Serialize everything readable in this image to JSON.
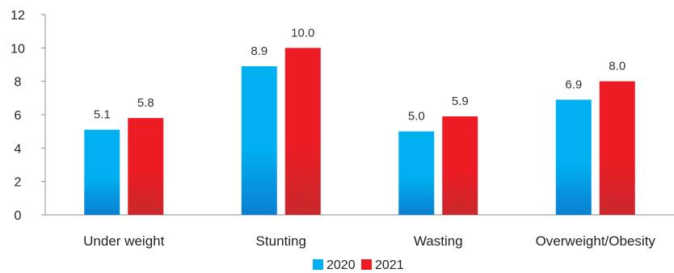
{
  "chart_data": {
    "type": "bar",
    "categories": [
      "Under weight",
      "Stunting",
      "Wasting",
      "Overweight/Obesity"
    ],
    "series": [
      {
        "name": "2020",
        "values": [
          5.1,
          8.9,
          5.0,
          6.9
        ],
        "labels": [
          "5.1",
          "8.9",
          "5.0",
          "6.9"
        ],
        "color": "#00b0f0",
        "color_dark": "#0a7fd0"
      },
      {
        "name": "2021",
        "values": [
          5.8,
          10.0,
          5.9,
          8.0
        ],
        "labels": [
          "5.8",
          "10.0",
          "5.9",
          "8.0"
        ],
        "color": "#ed1c24",
        "color_dark": "#c8282c"
      }
    ],
    "yticks": [
      "0",
      "2",
      "4",
      "6",
      "8",
      "10",
      "12"
    ],
    "ylim": [
      0,
      12
    ],
    "title": "",
    "xlabel": "",
    "ylabel": "",
    "grid": false,
    "legend_position": "bottom"
  }
}
